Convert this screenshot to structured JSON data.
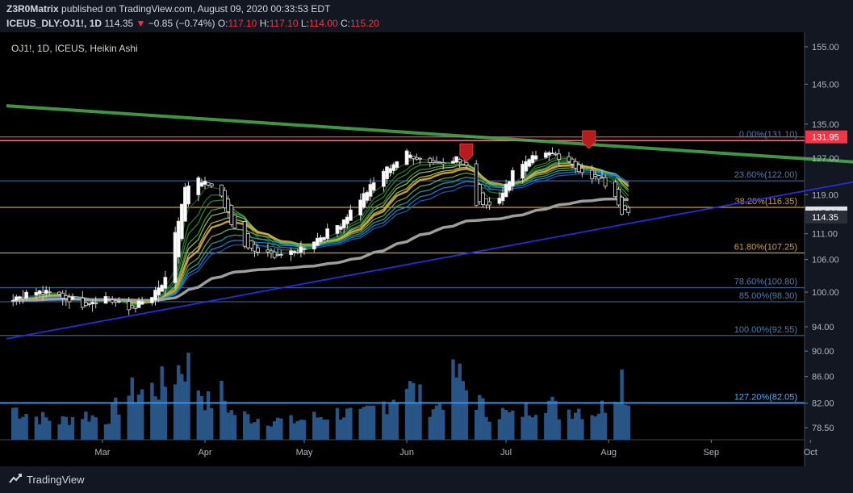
{
  "header": {
    "author": "Z3R0Matrix",
    "published": "published on TradingView.com, August 09, 2020 00:33:53 EDT",
    "symbol": "ICEUS_DLY:OJ1!, 1D",
    "last": "114.35",
    "arrow": "▼",
    "change": "−0.85 (−0.74%)",
    "o_label": "O:",
    "o_val": "117.10",
    "h_label": "H:",
    "h_val": "117.10",
    "l_label": "L:",
    "l_val": "114.00",
    "c_label": "C:",
    "c_val": "115.20"
  },
  "legend": "OJ1!, 1D, ICEUS, Heikin Ashi",
  "footer": {
    "brand": "TradingView"
  },
  "colors": {
    "background": "#000000",
    "up": "#ffffff",
    "down": "#000000",
    "volume": "#2962ff",
    "trend_green": "#4caf50",
    "support_blue": "#2b2bd8",
    "resistance_red": "#f23645",
    "fib_gold": "#c8a046",
    "fib_blue": "#2d5f8f",
    "ma_gray": "#a9a9a9"
  },
  "chart_data": {
    "type": "candlestick",
    "chart_style": "Heikin Ashi",
    "x_ticks": [
      "Mar",
      "Apr",
      "May",
      "Jun",
      "Jul",
      "Aug",
      "Sep",
      "Oct"
    ],
    "y_ticks": [
      "155.00",
      "145.00",
      "135.00",
      "127.00",
      "119.00",
      "111.00",
      "106.00",
      "100.00",
      "94.00",
      "90.00",
      "86.00",
      "82.00",
      "78.50"
    ],
    "y_log_ticks": [
      155.0,
      145.0,
      135.0,
      127.0,
      119.0,
      111.0,
      106.0,
      100.0,
      94.0,
      90.0,
      86.0,
      82.0,
      78.5
    ],
    "price_labels": [
      {
        "value": 131.95,
        "text": "131.95",
        "style": "red"
      },
      {
        "value": 115.2,
        "text": "115.20",
        "style": "white"
      },
      {
        "value": 114.35,
        "text": "114.35",
        "style": "dark"
      }
    ],
    "fib_levels": [
      {
        "label": "0.00%(131.10)",
        "value": 131.1,
        "color": "blue"
      },
      {
        "label": "23.60%(122.00)",
        "value": 122.0,
        "color": "blue"
      },
      {
        "label": "38.20%(116.35)",
        "value": 116.35,
        "color": "gold"
      },
      {
        "label": "61.80%(107.25)",
        "value": 107.25,
        "color": "gold"
      },
      {
        "label": "78.60%(100.80)",
        "value": 100.8,
        "color": "blue"
      },
      {
        "label": "85.00%(98.30)",
        "value": 98.3,
        "color": "blue"
      },
      {
        "label": "100.00%(92.55)",
        "value": 92.55,
        "color": "blue"
      },
      {
        "label": "127.20%(82.05)",
        "value": 82.05,
        "color": "brightblue"
      }
    ],
    "resistance": [
      131.95,
      131.1
    ],
    "trendlines": [
      {
        "name": "",
        "color": "green",
        "from": {
          "date": "2020-02-01",
          "value": 139.5
        },
        "to": {
          "date": "2020-10-18",
          "value": 126.0
        }
      },
      {
        "name": "",
        "color": "blue",
        "from": {
          "date": "2020-02-01",
          "value": 92.0
        },
        "to": {
          "date": "2020-10-18",
          "value": 122.3
        }
      }
    ],
    "sell_markers": [
      {
        "date": "2020-06-19",
        "value": 127.0
      },
      {
        "date": "2020-07-26",
        "value": 130.0
      }
    ],
    "ohlc_anchors": [
      [
        "2020-02-03",
        99
      ],
      [
        "2020-02-10",
        100
      ],
      [
        "2020-02-17",
        99.5
      ],
      [
        "2020-02-24",
        98
      ],
      [
        "2020-03-02",
        99
      ],
      [
        "2020-03-09",
        97
      ],
      [
        "2020-03-16",
        99
      ],
      [
        "2020-03-20",
        102
      ],
      [
        "2020-03-23",
        110
      ],
      [
        "2020-03-26",
        120
      ],
      [
        "2020-03-30",
        122
      ],
      [
        "2020-04-02",
        121
      ],
      [
        "2020-04-06",
        119
      ],
      [
        "2020-04-09",
        113
      ],
      [
        "2020-04-14",
        108
      ],
      [
        "2020-04-20",
        107
      ],
      [
        "2020-04-27",
        107
      ],
      [
        "2020-05-05",
        110
      ],
      [
        "2020-05-12",
        113
      ],
      [
        "2020-05-18",
        118
      ],
      [
        "2020-05-25",
        124
      ],
      [
        "2020-06-01",
        128
      ],
      [
        "2020-06-05",
        127
      ],
      [
        "2020-06-10",
        126
      ],
      [
        "2020-06-16",
        127
      ],
      [
        "2020-06-19",
        125
      ],
      [
        "2020-06-22",
        118
      ],
      [
        "2020-06-25",
        117
      ],
      [
        "2020-06-30",
        119
      ],
      [
        "2020-07-03",
        124
      ],
      [
        "2020-07-08",
        127
      ],
      [
        "2020-07-13",
        128.5
      ],
      [
        "2020-07-17",
        127
      ],
      [
        "2020-07-22",
        125
      ],
      [
        "2020-07-27",
        123
      ],
      [
        "2020-07-30",
        122
      ],
      [
        "2020-08-03",
        119
      ],
      [
        "2020-08-05",
        115.5
      ],
      [
        "2020-08-07",
        115.2
      ]
    ],
    "volume_profile": "relative heights, same dates as anchors",
    "volume_anchors": [
      0.35,
      0.25,
      0.2,
      0.28,
      0.22,
      0.5,
      0.55,
      0.6,
      0.75,
      0.85,
      0.6,
      0.4,
      0.5,
      0.3,
      0.25,
      0.22,
      0.2,
      0.25,
      0.3,
      0.25,
      0.4,
      0.6,
      0.45,
      0.35,
      0.7,
      0.55,
      0.45,
      0.3,
      0.3,
      0.25,
      0.35,
      0.45,
      0.3,
      0.35,
      0.3,
      0.35,
      0.55,
      0.7,
      0.4
    ]
  }
}
